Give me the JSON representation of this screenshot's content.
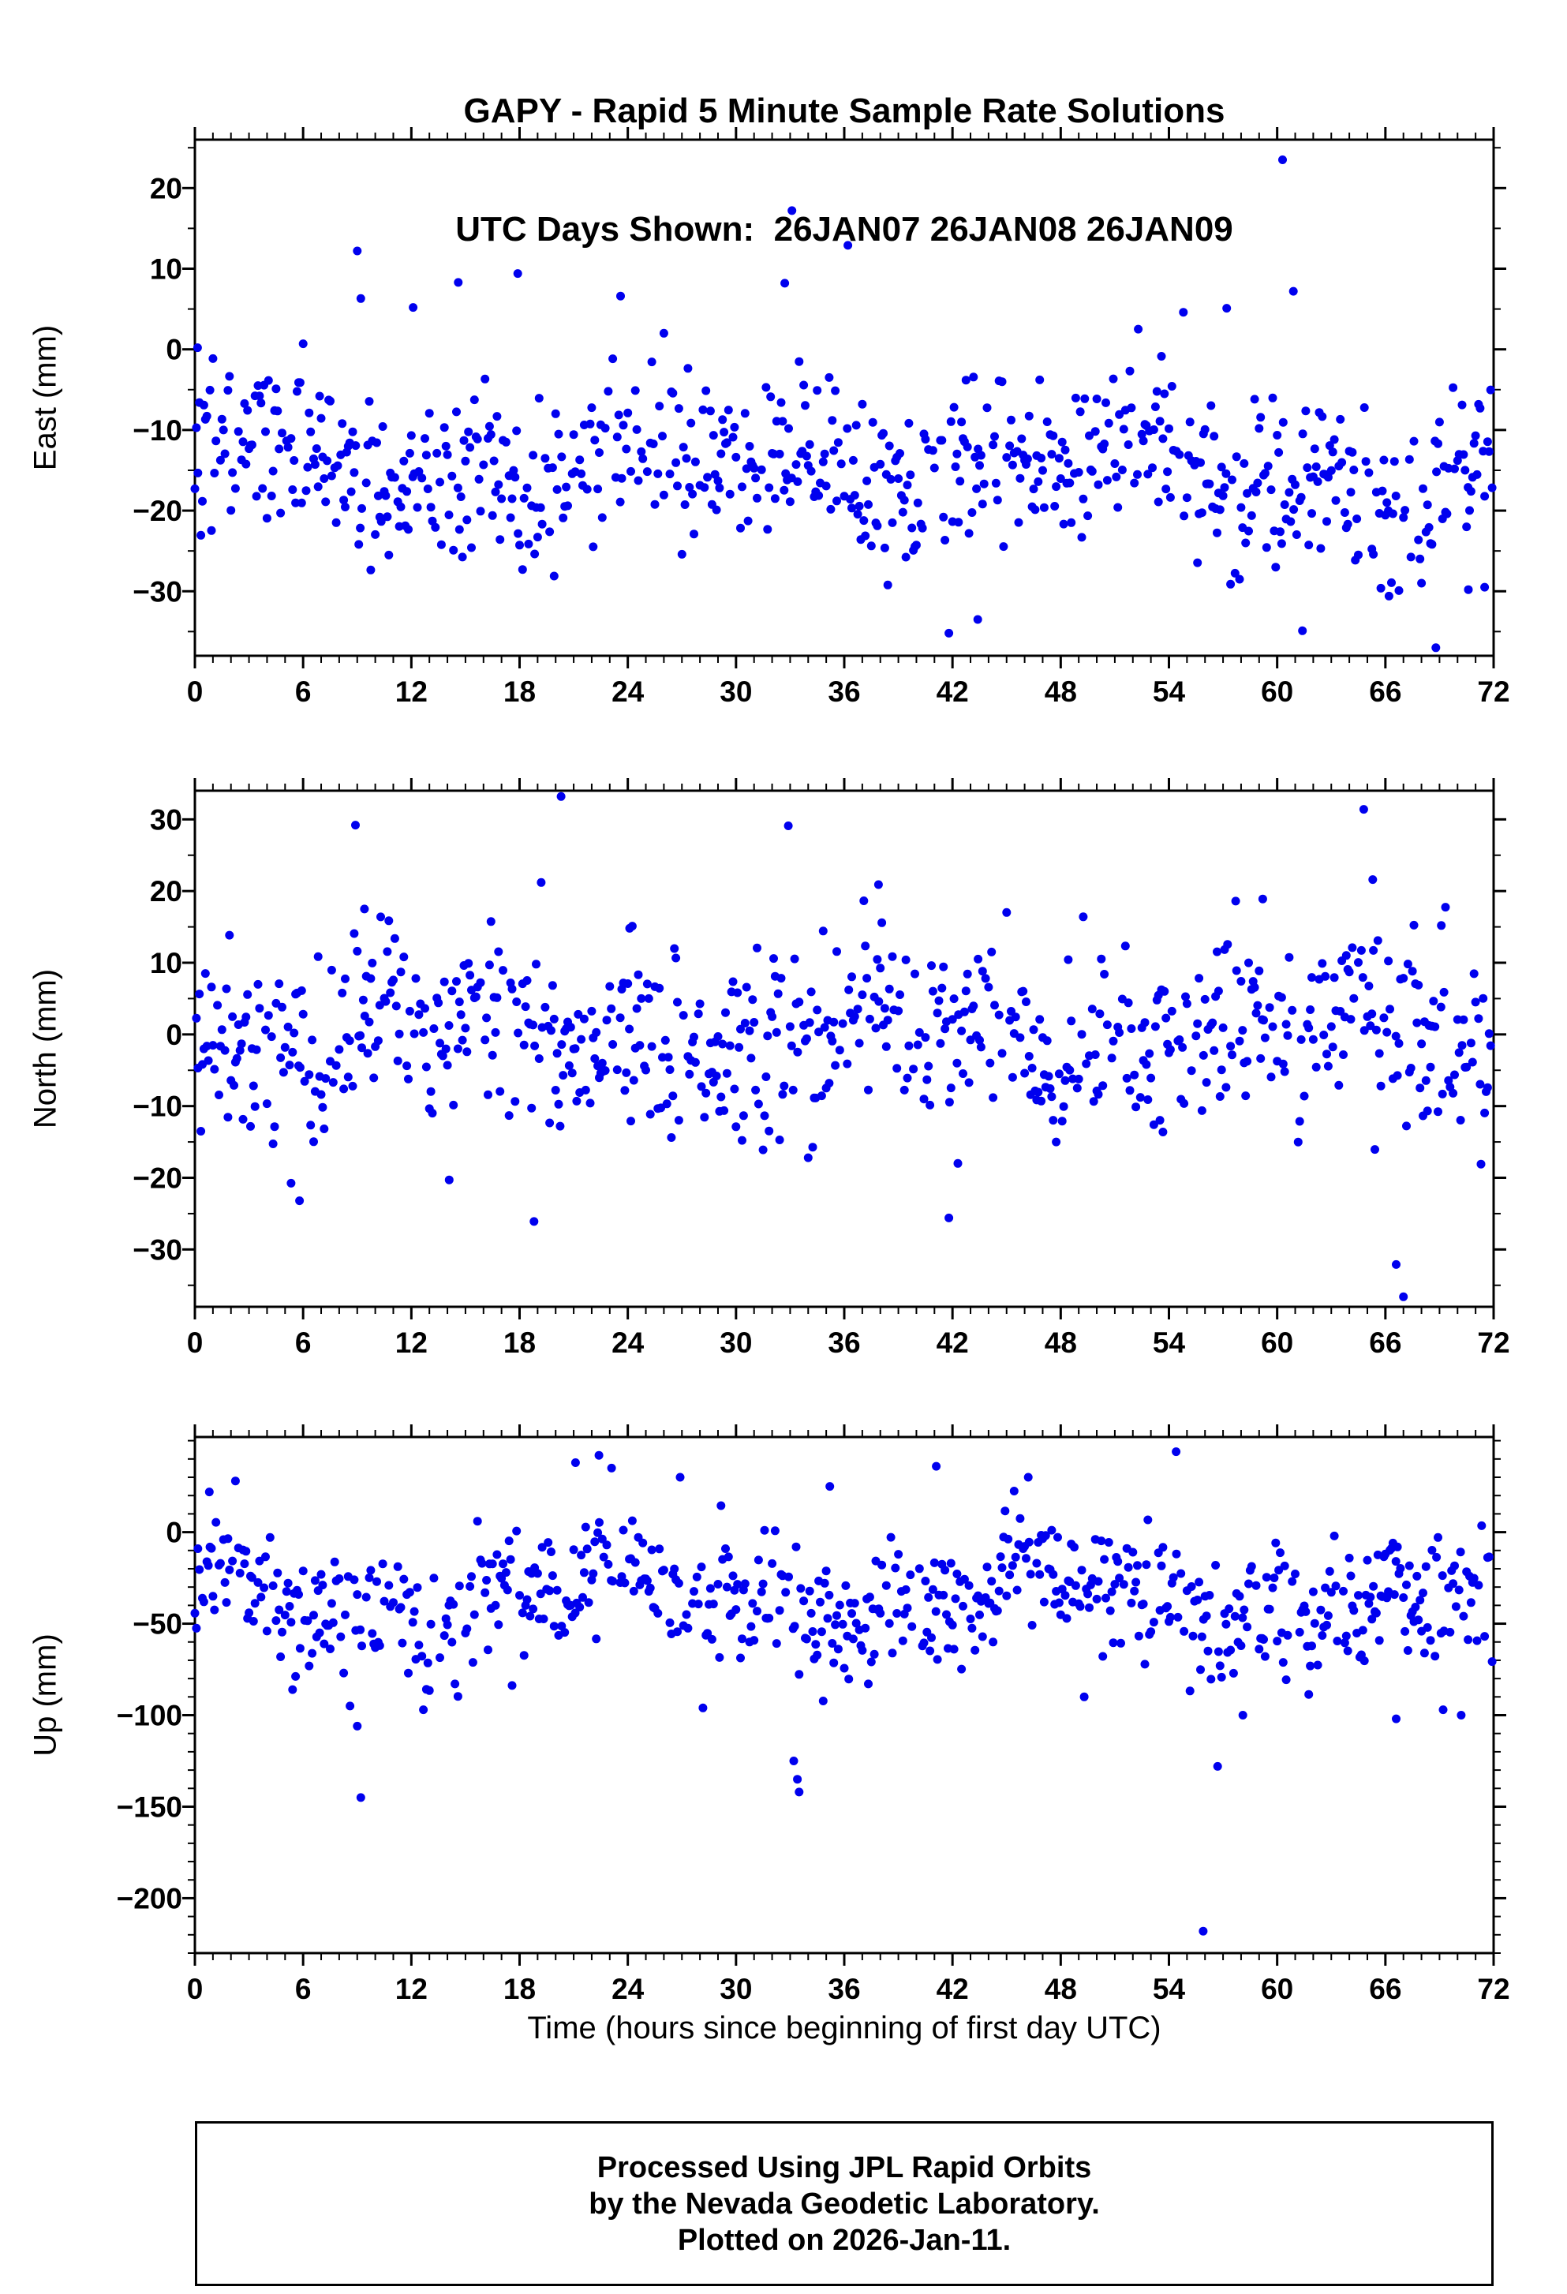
{
  "title": {
    "line1": "GAPY - Rapid 5 Minute Sample Rate Solutions",
    "line2": "UTC Days Shown:  26JAN07 26JAN08 26JAN09"
  },
  "footer": {
    "line1": "Processed Using JPL Rapid Orbits",
    "line2": "by the Nevada Geodetic Laboratory.",
    "line3": "Plotted on 2026-Jan-11."
  },
  "chart_data": {
    "type": "scatter",
    "marker": {
      "color": "#0000ee",
      "radius_px": 5.5
    },
    "x": {
      "label": "Time (hours since beginning of first day UTC)",
      "min": 0,
      "max": 72,
      "major_ticks": [
        0,
        6,
        12,
        18,
        24,
        30,
        36,
        42,
        48,
        54,
        60,
        66,
        72
      ],
      "minor_step": 1
    },
    "sample_interval_minutes": 5,
    "samples_per_panel": 864,
    "seed": 26012007,
    "panels": [
      {
        "name": "East",
        "ylabel": "East (mm)",
        "ylim": [
          -38,
          26
        ],
        "major_ticks": [
          -30,
          -20,
          -10,
          0,
          10,
          20
        ],
        "minor_step": 5,
        "mean": -13,
        "std": 5.2,
        "trend_per_hour": -0.05,
        "drop_rate": 0.2,
        "clamp": [
          -30,
          8
        ],
        "wander": [
          {
            "period": 24,
            "amp": 3
          },
          {
            "period": 9.5,
            "amp": 2
          }
        ],
        "outliers": [
          [
            0.15,
            0.2
          ],
          [
            9.0,
            12.2
          ],
          [
            9.2,
            6.3
          ],
          [
            12.1,
            5.2
          ],
          [
            14.6,
            8.3
          ],
          [
            17.9,
            9.4
          ],
          [
            23.6,
            6.6
          ],
          [
            26.0,
            2.0
          ],
          [
            32.7,
            8.2
          ],
          [
            33.1,
            17.2
          ],
          [
            36.2,
            12.9
          ],
          [
            52.3,
            2.5
          ],
          [
            54.8,
            4.6
          ],
          [
            57.2,
            5.1
          ],
          [
            60.3,
            23.5
          ],
          [
            60.9,
            7.2
          ],
          [
            41.8,
            -35.2
          ],
          [
            43.4,
            -33.5
          ],
          [
            61.4,
            -34.9
          ],
          [
            68.8,
            -37.0
          ],
          [
            70.6,
            -29.8
          ],
          [
            66.2,
            -30.6
          ],
          [
            71.5,
            -29.5
          ]
        ]
      },
      {
        "name": "North",
        "ylabel": "North (mm)",
        "ylim": [
          -38,
          34
        ],
        "major_ticks": [
          -30,
          -20,
          -10,
          0,
          10,
          20,
          30
        ],
        "minor_step": 5,
        "mean": 0,
        "std": 6.5,
        "trend_per_hour": 0,
        "drop_rate": 0.2,
        "clamp": [
          -23,
          21
        ],
        "wander": [
          {
            "period": 24,
            "amp": 2.5
          },
          {
            "period": 6.8,
            "amp": 2.5
          }
        ],
        "outliers": [
          [
            5.8,
            -23.2
          ],
          [
            8.9,
            29.2
          ],
          [
            9.4,
            17.5
          ],
          [
            10.3,
            16.4
          ],
          [
            14.1,
            -20.3
          ],
          [
            18.8,
            -26.1
          ],
          [
            19.2,
            21.2
          ],
          [
            20.3,
            33.2
          ],
          [
            24.1,
            14.8
          ],
          [
            32.9,
            29.1
          ],
          [
            37.9,
            20.9
          ],
          [
            41.8,
            -25.6
          ],
          [
            42.3,
            -18.0
          ],
          [
            57.7,
            18.6
          ],
          [
            59.2,
            18.9
          ],
          [
            64.8,
            31.4
          ],
          [
            65.3,
            21.6
          ],
          [
            66.6,
            -32.1
          ],
          [
            67.0,
            -36.6
          ],
          [
            69.1,
            15.2
          ],
          [
            71.3,
            -18.1
          ]
        ]
      },
      {
        "name": "Up",
        "ylabel": "Up (mm)",
        "ylim": [
          -230,
          52
        ],
        "major_ticks": [
          -200,
          -150,
          -100,
          -50,
          0
        ],
        "minor_step": 10,
        "mean": -38,
        "std": 18,
        "trend_per_hour": 0,
        "drop_rate": 0.2,
        "clamp": [
          -100,
          38
        ],
        "wander": [
          {
            "period": 24,
            "amp": 10
          },
          {
            "period": 7.2,
            "amp": 7
          },
          {
            "period": 3.1,
            "amp": 4
          }
        ],
        "outliers": [
          [
            0.8,
            22
          ],
          [
            8.6,
            -95
          ],
          [
            9.0,
            -106
          ],
          [
            9.2,
            -145
          ],
          [
            21.1,
            38
          ],
          [
            22.4,
            42
          ],
          [
            23.1,
            35
          ],
          [
            26.9,
            30
          ],
          [
            33.2,
            -125
          ],
          [
            33.4,
            -135
          ],
          [
            33.5,
            -142
          ],
          [
            35.2,
            25
          ],
          [
            41.1,
            36
          ],
          [
            46.2,
            30
          ],
          [
            49.3,
            -90
          ],
          [
            54.4,
            44
          ],
          [
            55.9,
            -218
          ],
          [
            56.7,
            -128
          ],
          [
            58.1,
            -100
          ],
          [
            66.6,
            -102
          ],
          [
            69.2,
            -97
          ],
          [
            70.2,
            -100
          ]
        ]
      }
    ]
  }
}
